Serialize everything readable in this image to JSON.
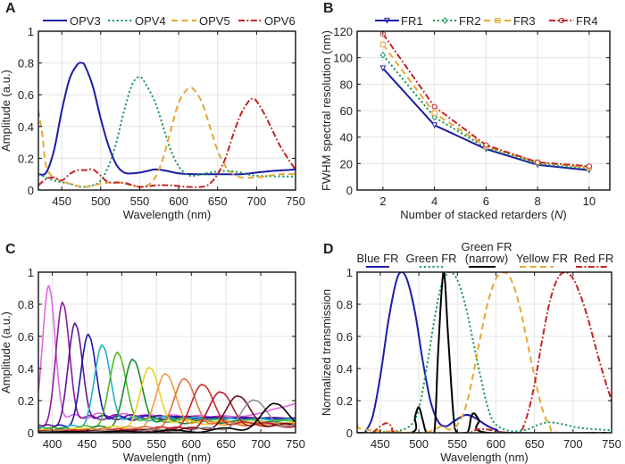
{
  "chart_data": [
    {
      "panel": "A",
      "type": "line",
      "xlabel": "Wavelength (nm)",
      "ylabel": "Amplitude (a.u.)",
      "xlim": [
        420,
        750
      ],
      "ylim": [
        0,
        1
      ],
      "xticks": [
        450,
        500,
        550,
        600,
        650,
        700,
        750
      ],
      "yticks": [
        0,
        0.2,
        0.4,
        0.6,
        0.8,
        1
      ],
      "ytick_labels": [
        "0",
        "0.2",
        "0.4",
        "0.6",
        "0.8",
        "1"
      ],
      "grid": true,
      "legend_placement": "top",
      "series": [
        {
          "name": "OPV3",
          "color": "#1c1ca6",
          "style": "solid",
          "x": [
            420,
            430,
            440,
            450,
            460,
            470,
            476,
            480,
            490,
            500,
            510,
            520,
            530,
            540,
            550,
            560,
            570,
            580,
            590,
            600,
            620,
            650,
            680,
            700,
            720,
            750
          ],
          "y": [
            0.1,
            0.11,
            0.25,
            0.5,
            0.7,
            0.79,
            0.8,
            0.78,
            0.65,
            0.45,
            0.28,
            0.16,
            0.11,
            0.105,
            0.11,
            0.12,
            0.13,
            0.125,
            0.115,
            0.105,
            0.1,
            0.1,
            0.1,
            0.11,
            0.12,
            0.13
          ]
        },
        {
          "name": "OPV4",
          "color": "#1f9a5a",
          "style": "dotted",
          "x": [
            420,
            440,
            460,
            475,
            490,
            500,
            510,
            520,
            530,
            540,
            548,
            555,
            570,
            580,
            590,
            600,
            610,
            620,
            640,
            660,
            680,
            700,
            750
          ],
          "y": [
            0.1,
            0.06,
            0.04,
            0.02,
            0.03,
            0.06,
            0.15,
            0.3,
            0.5,
            0.66,
            0.71,
            0.69,
            0.55,
            0.4,
            0.25,
            0.15,
            0.1,
            0.09,
            0.11,
            0.12,
            0.11,
            0.09,
            0.085
          ]
        },
        {
          "name": "OPV5",
          "color": "#e8a630",
          "style": "dashed",
          "x": [
            420,
            425,
            430,
            440,
            460,
            480,
            500,
            520,
            540,
            550,
            560,
            570,
            580,
            590,
            600,
            610,
            615,
            620,
            630,
            640,
            650,
            660,
            670,
            680,
            700,
            730,
            750
          ],
          "y": [
            0.5,
            0.35,
            0.15,
            0.08,
            0.04,
            0.02,
            0.04,
            0.05,
            0.03,
            0.02,
            0.03,
            0.08,
            0.2,
            0.38,
            0.55,
            0.63,
            0.645,
            0.63,
            0.55,
            0.4,
            0.25,
            0.15,
            0.1,
            0.08,
            0.08,
            0.1,
            0.1
          ]
        },
        {
          "name": "OPV6",
          "color": "#c42424",
          "style": "dashdot",
          "x": [
            420,
            430,
            440,
            450,
            460,
            470,
            480,
            490,
            500,
            510,
            530,
            550,
            570,
            590,
            610,
            630,
            640,
            650,
            660,
            670,
            680,
            690,
            695,
            700,
            710,
            720,
            730,
            740,
            750
          ],
          "y": [
            0.03,
            0.07,
            0.08,
            0.06,
            0.1,
            0.125,
            0.125,
            0.13,
            0.09,
            0.05,
            0.045,
            0.02,
            0.03,
            0.03,
            0.02,
            0.02,
            0.04,
            0.1,
            0.2,
            0.35,
            0.48,
            0.56,
            0.575,
            0.56,
            0.48,
            0.38,
            0.28,
            0.2,
            0.13
          ]
        }
      ]
    },
    {
      "panel": "B",
      "type": "line",
      "xlabel": "Number of stacked retarders (",
      "xlabel_italic": "N",
      "xlabel_end": ")",
      "ylabel": "FWHM spectral resolution (nm)",
      "xlim": [
        1,
        10.8
      ],
      "ylim": [
        0,
        120
      ],
      "xticks": [
        2,
        4,
        6,
        8,
        10
      ],
      "yticks": [
        0,
        20,
        40,
        60,
        80,
        100,
        120
      ],
      "ytick_labels": [
        "0",
        "20",
        "40",
        "60",
        "80",
        "100",
        "120"
      ],
      "grid": true,
      "legend_placement": "top",
      "x": [
        2,
        4,
        6,
        8,
        10
      ],
      "series": [
        {
          "name": "FR1",
          "color": "#1c1ca6",
          "style": "solid",
          "marker": "triangle-down",
          "values": [
            92,
            49,
            31,
            19,
            15
          ]
        },
        {
          "name": "FR2",
          "color": "#1f9a5a",
          "style": "dotted",
          "marker": "diamond",
          "values": [
            102,
            55,
            32,
            20,
            16
          ]
        },
        {
          "name": "FR3",
          "color": "#e8a630",
          "style": "dashed",
          "marker": "square",
          "values": [
            110,
            58,
            33,
            21,
            17
          ]
        },
        {
          "name": "FR4",
          "color": "#c42424",
          "style": "dashdot",
          "marker": "circle",
          "values": [
            118,
            63,
            34,
            21,
            18
          ]
        }
      ]
    },
    {
      "panel": "C",
      "type": "line",
      "xlabel": "Wavelength (nm)",
      "ylabel": "Amplitude (a.u.)",
      "xlim": [
        380,
        750
      ],
      "ylim": [
        0,
        1
      ],
      "xticks": [
        400,
        450,
        500,
        550,
        600,
        650,
        700,
        750
      ],
      "yticks": [
        0,
        0.2,
        0.4,
        0.6,
        0.8,
        1
      ],
      "ytick_labels": [
        "0",
        "0.2",
        "0.4",
        "0.6",
        "0.8",
        "1"
      ],
      "grid": true,
      "series": [
        {
          "peak_wavelength": 395,
          "peak_amplitude": 0.9,
          "baseline": 0.1,
          "color": "#e066e0"
        },
        {
          "peak_wavelength": 415,
          "peak_amplitude": 0.8,
          "baseline": 0.09,
          "color": "#8e1c9e"
        },
        {
          "peak_wavelength": 433,
          "peak_amplitude": 0.67,
          "baseline": 0.09,
          "color": "#5c1890"
        },
        {
          "peak_wavelength": 452,
          "peak_amplitude": 0.6,
          "baseline": 0.085,
          "color": "#1a1aaa"
        },
        {
          "peak_wavelength": 472,
          "peak_amplitude": 0.535,
          "baseline": 0.08,
          "color": "#22b0c8"
        },
        {
          "peak_wavelength": 494,
          "peak_amplitude": 0.49,
          "baseline": 0.07,
          "color": "#52b830"
        },
        {
          "peak_wavelength": 516,
          "peak_amplitude": 0.45,
          "baseline": 0.06,
          "color": "#1a8a2a"
        },
        {
          "peak_wavelength": 540,
          "peak_amplitude": 0.4,
          "baseline": 0.055,
          "color": "#f0d020"
        },
        {
          "peak_wavelength": 563,
          "peak_amplitude": 0.36,
          "baseline": 0.05,
          "color": "#e8a040"
        },
        {
          "peak_wavelength": 590,
          "peak_amplitude": 0.33,
          "baseline": 0.045,
          "color": "#e07040"
        },
        {
          "peak_wavelength": 616,
          "peak_amplitude": 0.295,
          "baseline": 0.04,
          "color": "#d02828"
        },
        {
          "peak_wavelength": 642,
          "peak_amplitude": 0.25,
          "baseline": 0.035,
          "color": "#b81830"
        },
        {
          "peak_wavelength": 667,
          "peak_amplitude": 0.225,
          "baseline": 0.03,
          "color": "#6a1020"
        },
        {
          "peak_wavelength": 690,
          "peak_amplitude": 0.2,
          "baseline": 0.03,
          "color": "#909090"
        },
        {
          "peak_wavelength": 720,
          "peak_amplitude": 0.18,
          "baseline": 0.02,
          "color": "#000000"
        }
      ]
    },
    {
      "panel": "D",
      "type": "line",
      "xlabel": "Wavelength (nm)",
      "ylabel": "Normalized transmission",
      "xlim": [
        420,
        750
      ],
      "ylim": [
        0,
        1
      ],
      "xticks": [
        450,
        500,
        550,
        600,
        650,
        700,
        750
      ],
      "yticks": [
        0,
        0.2,
        0.4,
        0.6,
        0.8,
        1
      ],
      "ytick_labels": [
        "0",
        "0.2",
        "0.4",
        "0.6",
        "0.8",
        "1"
      ],
      "grid": true,
      "legend_placement": "top",
      "series": [
        {
          "name": "Blue FR",
          "color": "#1c1ca6",
          "style": "solid",
          "x": [
            430,
            440,
            450,
            460,
            470,
            477,
            485,
            495,
            505,
            515,
            525,
            535,
            545,
            560,
            570,
            580,
            590,
            600,
            620,
            750
          ],
          "y": [
            0,
            0.1,
            0.35,
            0.68,
            0.93,
            1.0,
            0.95,
            0.75,
            0.45,
            0.2,
            0.07,
            0.04,
            0.07,
            0.11,
            0.1,
            0.07,
            0.04,
            0.02,
            0,
            0
          ]
        },
        {
          "name": "Green FR",
          "color": "#1f9a5a",
          "style": "dotted",
          "x": [
            420,
            470,
            490,
            500,
            510,
            520,
            530,
            540,
            550,
            560,
            570,
            580,
            590,
            600,
            620,
            640,
            655,
            670,
            690,
            710,
            750
          ],
          "y": [
            0,
            0.01,
            0.05,
            0.15,
            0.4,
            0.7,
            0.93,
            1.0,
            0.95,
            0.8,
            0.58,
            0.35,
            0.15,
            0.05,
            0.01,
            0.02,
            0.05,
            0.065,
            0.05,
            0.03,
            0.015
          ]
        },
        {
          "name": "Green FR",
          "name_line2": "(narrow)",
          "color": "#000000",
          "style": "solid",
          "x": [
            420,
            490,
            495,
            500,
            505,
            510,
            520,
            525,
            532,
            538,
            545,
            550,
            563,
            568,
            572,
            578,
            590,
            750
          ],
          "y": [
            0,
            0,
            0.1,
            0.16,
            0.08,
            0,
            0,
            0.5,
            1.0,
            0.6,
            0.1,
            0,
            0,
            0.1,
            0.12,
            0.08,
            0,
            0
          ]
        },
        {
          "name": "Yellow FR",
          "color": "#e8a630",
          "style": "dashed",
          "x": [
            420,
            430,
            500,
            520,
            530,
            540,
            550,
            560,
            570,
            580,
            590,
            600,
            610,
            620,
            630,
            640,
            650,
            660,
            670,
            680,
            750
          ],
          "y": [
            0.05,
            0.02,
            0,
            0.02,
            0.04,
            0.02,
            0.05,
            0.15,
            0.35,
            0.6,
            0.82,
            0.96,
            1.0,
            0.95,
            0.8,
            0.58,
            0.35,
            0.15,
            0.04,
            0,
            0
          ]
        },
        {
          "name": "Red FR",
          "color": "#c42424",
          "style": "dashdot",
          "x": [
            440,
            450,
            458,
            465,
            475,
            560,
            575,
            590,
            610,
            630,
            640,
            650,
            660,
            670,
            680,
            690,
            700,
            710,
            720,
            730,
            740,
            750
          ],
          "y": [
            0,
            0.04,
            0.06,
            0.04,
            0,
            0,
            0.02,
            0.02,
            0,
            0,
            0.1,
            0.3,
            0.58,
            0.82,
            0.96,
            1.0,
            0.96,
            0.85,
            0.7,
            0.52,
            0.35,
            0.2
          ]
        }
      ]
    }
  ]
}
